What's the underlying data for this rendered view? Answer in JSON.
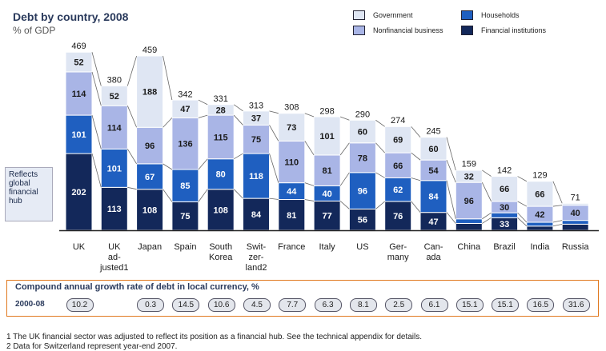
{
  "title": "Debt by country, 2008",
  "subtitle": "% of GDP",
  "legend": [
    {
      "label": "Government",
      "color": "#dfe6f3"
    },
    {
      "label": "Households",
      "color": "#1f5fc0"
    },
    {
      "label": "Nonfinancial business",
      "color": "#a9b5e6"
    },
    {
      "label": "Financial institutions",
      "color": "#13285a"
    }
  ],
  "annotation": "Reflects global financial hub",
  "chart_data": {
    "type": "bar",
    "stacked": true,
    "categories": [
      "UK",
      "UK ad- justed1",
      "Japan",
      "Spain",
      "South Korea",
      "Swit- zer- land2",
      "France",
      "Italy",
      "US",
      "Ger- many",
      "Can- ada",
      "China",
      "Brazil",
      "India",
      "Russia"
    ],
    "totals": [
      469,
      380,
      459,
      342,
      331,
      313,
      308,
      298,
      290,
      274,
      245,
      159,
      142,
      129,
      71
    ],
    "series": [
      {
        "name": "Financial institutions",
        "values": [
          202,
          113,
          108,
          75,
          108,
          84,
          81,
          77,
          56,
          76,
          47,
          18,
          33,
          11,
          16
        ]
      },
      {
        "name": "Households",
        "values": [
          101,
          101,
          67,
          85,
          80,
          118,
          44,
          40,
          96,
          62,
          84,
          12,
          13,
          10,
          10
        ]
      },
      {
        "name": "Nonfinancial business",
        "values": [
          114,
          114,
          96,
          136,
          115,
          75,
          110,
          81,
          78,
          66,
          54,
          96,
          30,
          42,
          40
        ]
      },
      {
        "name": "Government",
        "values": [
          52,
          52,
          188,
          47,
          28,
          37,
          73,
          101,
          60,
          69,
          60,
          32,
          66,
          66,
          5
        ]
      }
    ],
    "ylim": [
      0,
      480
    ]
  },
  "growth": {
    "title": "Compound annual growth rate of debt in local currency, %",
    "period": "2000-08",
    "values": [
      "10.2",
      "",
      "0.3",
      "14.5",
      "10.6",
      "4.5",
      "7.7",
      "6.3",
      "8.1",
      "2.5",
      "6.1",
      "15.1",
      "15.1",
      "16.5",
      "31.6"
    ]
  },
  "footnotes": [
    "1 The UK financial sector was adjusted to reflect its position as a financial hub. See the technical appendix for details.",
    "2 Data for Switzerland represent year-end 2007."
  ]
}
